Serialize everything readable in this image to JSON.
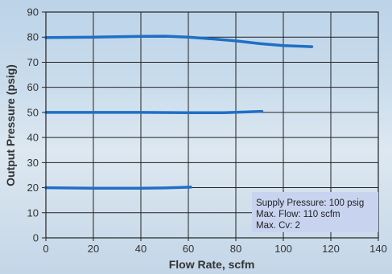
{
  "chart_data": {
    "type": "line",
    "xlabel": "Flow Rate, scfm",
    "ylabel": "Output Pressure (psig)",
    "xlim": [
      0,
      140
    ],
    "ylim": [
      0,
      90
    ],
    "xticks": [
      0,
      20,
      40,
      60,
      80,
      100,
      120,
      140
    ],
    "yticks": [
      0,
      10,
      20,
      30,
      40,
      50,
      60,
      70,
      80,
      90
    ],
    "grid": true,
    "series_color": "#1f6fc4",
    "series": [
      {
        "x": [
          0,
          20,
          40,
          50,
          60,
          70,
          80,
          90,
          100,
          112
        ],
        "y": [
          79.8,
          80,
          80.3,
          80.4,
          80,
          79.3,
          78.5,
          77.4,
          76.6,
          76.2
        ]
      },
      {
        "x": [
          0,
          20,
          40,
          60,
          75,
          91
        ],
        "y": [
          50,
          50,
          50,
          49.9,
          49.9,
          50.4
        ]
      },
      {
        "x": [
          0,
          20,
          40,
          50,
          61
        ],
        "y": [
          20,
          19.8,
          19.8,
          19.9,
          20.2
        ]
      }
    ],
    "annotation": [
      "Supply Pressure: 100 psig",
      "Max. Flow: 110 scfm",
      "Max. Cv: 2"
    ]
  }
}
